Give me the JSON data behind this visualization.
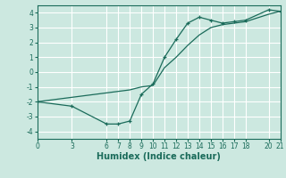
{
  "xlabel": "Humidex (Indice chaleur)",
  "background_color": "#cce8e0",
  "grid_color": "#ffffff",
  "line_color": "#1a6b5a",
  "line1_x": [
    0,
    3,
    6,
    7,
    8,
    9,
    10,
    11,
    12,
    13,
    14,
    15,
    16,
    17,
    18,
    20,
    21
  ],
  "line1_y": [
    -2.0,
    -2.3,
    -3.5,
    -3.5,
    -3.3,
    -1.5,
    -0.8,
    1.0,
    2.2,
    3.3,
    3.7,
    3.5,
    3.3,
    3.4,
    3.5,
    4.2,
    4.1
  ],
  "line2_x": [
    0,
    3,
    6,
    7,
    8,
    9,
    10,
    11,
    12,
    13,
    14,
    15,
    16,
    17,
    18,
    20,
    21
  ],
  "line2_y": [
    -2.0,
    -1.7,
    -1.4,
    -1.3,
    -1.2,
    -1.0,
    -0.9,
    0.3,
    1.0,
    1.8,
    2.5,
    3.0,
    3.2,
    3.3,
    3.4,
    3.9,
    4.1
  ],
  "xlim": [
    0,
    21
  ],
  "ylim": [
    -4.5,
    4.5
  ],
  "xticks": [
    0,
    3,
    6,
    7,
    8,
    9,
    10,
    11,
    12,
    13,
    14,
    15,
    16,
    17,
    18,
    20,
    21
  ],
  "yticks": [
    -4,
    -3,
    -2,
    -1,
    0,
    1,
    2,
    3,
    4
  ],
  "tick_fontsize": 5.5,
  "label_fontsize": 7,
  "linewidth": 0.9,
  "markersize": 3.5
}
